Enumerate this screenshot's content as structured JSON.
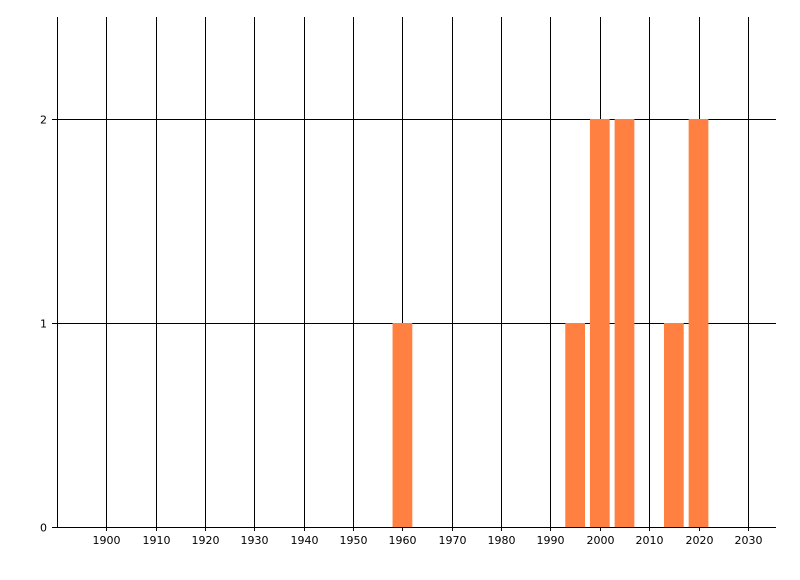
{
  "chart_data": {
    "type": "bar",
    "title": "",
    "xlabel": "",
    "ylabel": "",
    "xlim": [
      1890,
      2035.5
    ],
    "ylim": [
      0,
      2.5
    ],
    "x_ticks": [
      1900,
      1910,
      1920,
      1930,
      1940,
      1950,
      1960,
      1970,
      1980,
      1990,
      2000,
      2010,
      2020,
      2030
    ],
    "y_ticks": [
      0,
      1,
      2
    ],
    "grid": true,
    "bar_width_years": 4,
    "bar_color": "#FF8040",
    "bars": [
      {
        "x": 1960,
        "value": 1
      },
      {
        "x": 1995,
        "value": 1
      },
      {
        "x": 2000,
        "value": 2
      },
      {
        "x": 2005,
        "value": 2
      },
      {
        "x": 2015,
        "value": 1
      },
      {
        "x": 2020,
        "value": 2
      }
    ]
  }
}
